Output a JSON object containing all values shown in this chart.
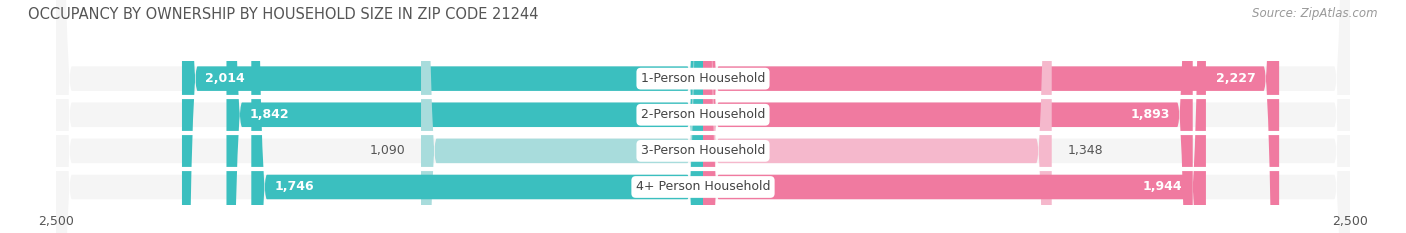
{
  "title": "OCCUPANCY BY OWNERSHIP BY HOUSEHOLD SIZE IN ZIP CODE 21244",
  "source": "Source: ZipAtlas.com",
  "categories": [
    "1-Person Household",
    "2-Person Household",
    "3-Person Household",
    "4+ Person Household"
  ],
  "owner_values": [
    2014,
    1842,
    1090,
    1746
  ],
  "renter_values": [
    2227,
    1893,
    1348,
    1944
  ],
  "owner_color_strong": "#3bbfbf",
  "owner_color_light": "#a8dcdc",
  "renter_color_strong": "#f07aa0",
  "renter_color_light": "#f5b8cc",
  "background_color": "#ffffff",
  "bar_background": "#e8e8e8",
  "row_background": "#f5f5f5",
  "max_value": 2500,
  "bar_height": 0.68,
  "title_fontsize": 10.5,
  "source_fontsize": 8.5,
  "tick_fontsize": 9,
  "label_fontsize": 9,
  "category_fontsize": 9,
  "strong_threshold": 1400
}
